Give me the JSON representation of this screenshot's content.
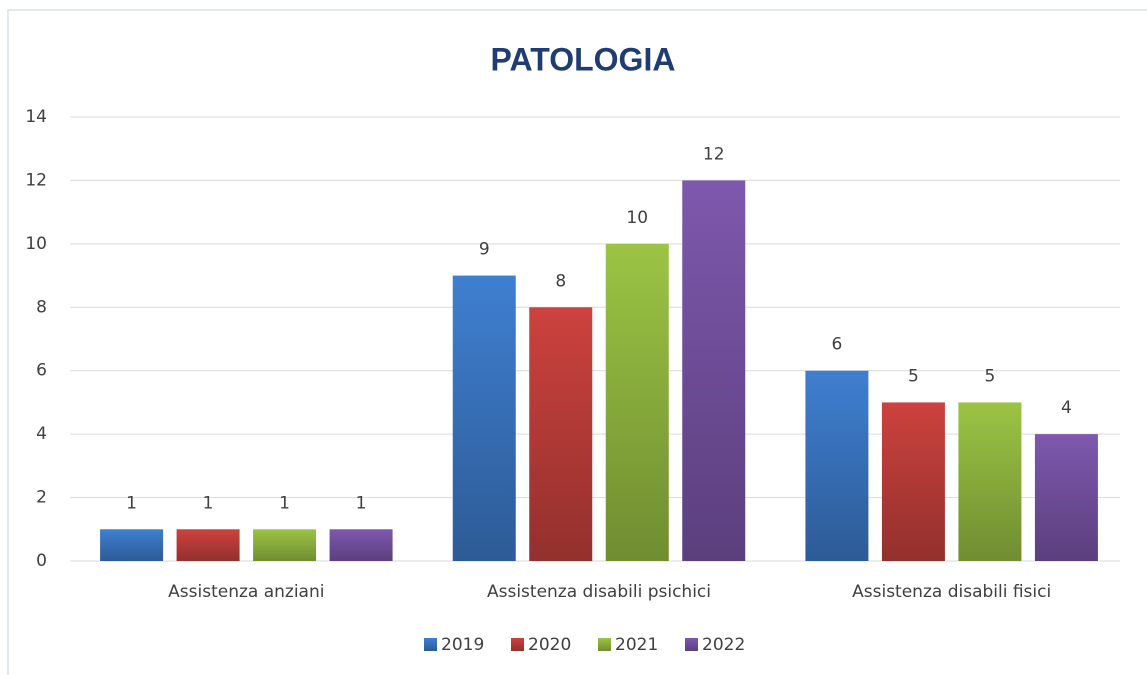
{
  "chart_data": {
    "type": "bar",
    "title": "PATOLOGIA",
    "categories": [
      "Assistenza anziani",
      "Assistenza disabili psichici",
      "Assistenza disabili fisici"
    ],
    "series": [
      {
        "name": "2019",
        "color": "#3f7fd0",
        "values": [
          1,
          9,
          6
        ]
      },
      {
        "name": "2020",
        "color": "#cc423e",
        "values": [
          1,
          8,
          5
        ]
      },
      {
        "name": "2021",
        "color": "#9bc444",
        "values": [
          1,
          10,
          5
        ]
      },
      {
        "name": "2022",
        "color": "#7e58ad",
        "values": [
          1,
          12,
          4
        ]
      }
    ],
    "ylim": [
      0,
      14
    ],
    "yticks": [
      0,
      2,
      4,
      6,
      8,
      10,
      12,
      14
    ],
    "grid": true,
    "legend": "bottom"
  }
}
